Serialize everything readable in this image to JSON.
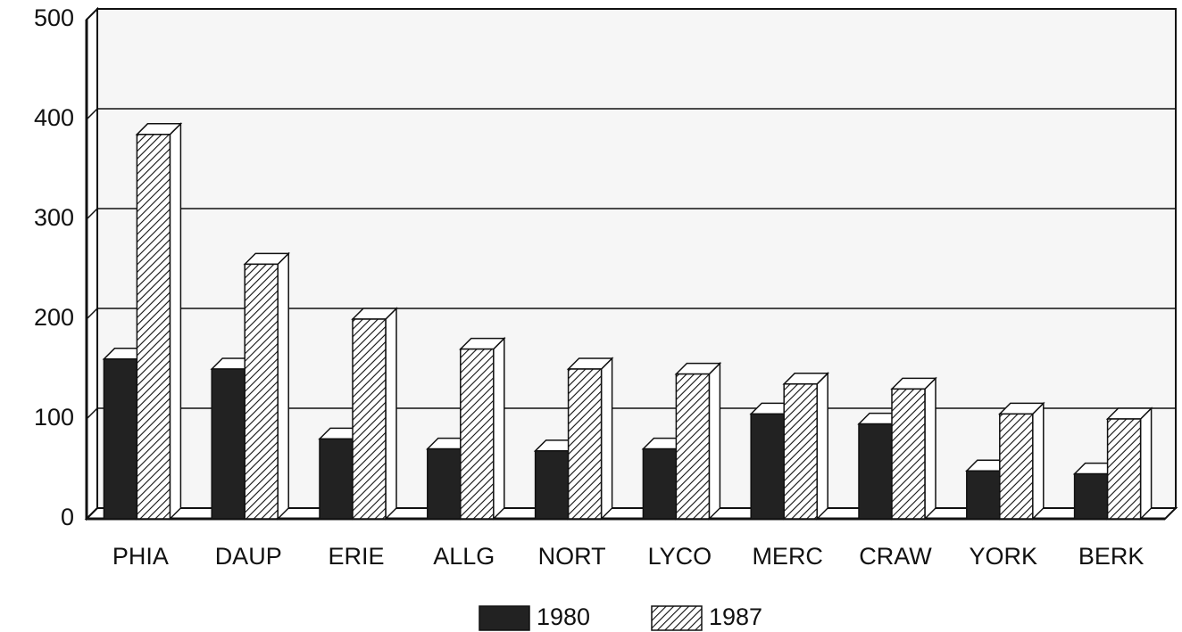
{
  "chart_data": {
    "type": "bar3d",
    "categories": [
      "PHIA",
      "DAUP",
      "ERIE",
      "ALLG",
      "NORT",
      "LYCO",
      "MERC",
      "CRAW",
      "YORK",
      "BERK"
    ],
    "series": [
      {
        "name": "1980",
        "color": "#222222",
        "pattern": "solid",
        "values": [
          160,
          150,
          80,
          70,
          68,
          70,
          105,
          95,
          48,
          45
        ]
      },
      {
        "name": "1987",
        "color": "#ffffff",
        "pattern": "hatched",
        "values": [
          385,
          255,
          200,
          170,
          150,
          145,
          135,
          130,
          105,
          100
        ]
      }
    ],
    "ylim": [
      0,
      500
    ],
    "yticks": [
      0,
      100,
      200,
      300,
      400,
      500
    ],
    "grid": true,
    "legend": "bottom"
  }
}
